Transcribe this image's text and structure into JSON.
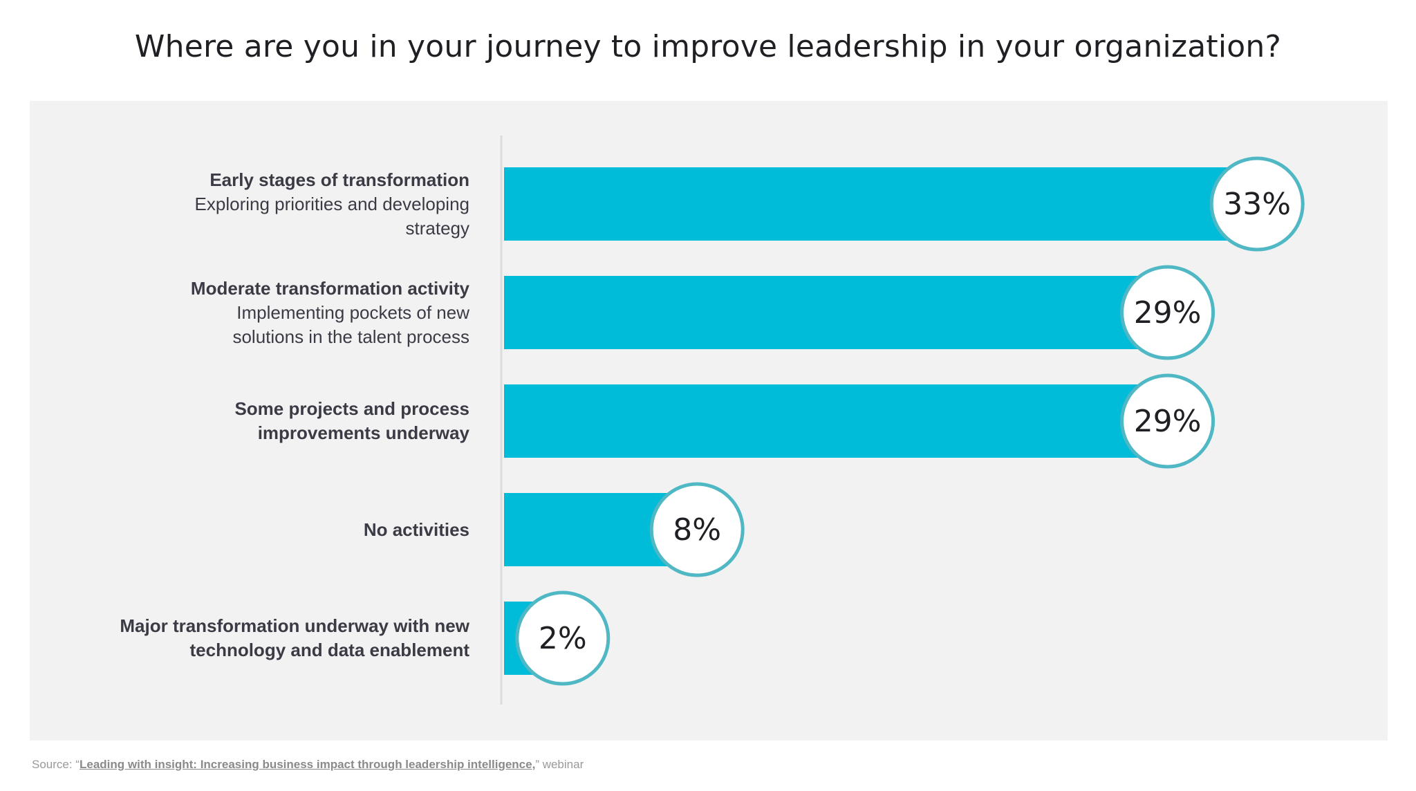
{
  "chart_data": {
    "type": "bar",
    "orientation": "horizontal",
    "title": "Where are you in your journey to improve leadership in your organization?",
    "categories": [
      {
        "title": "Early stages of transformation",
        "subtitle": "Exploring priorities and developing strategy"
      },
      {
        "title": "Moderate transformation activity",
        "subtitle": "Implementing pockets of new solutions in the talent process"
      },
      {
        "title": "Some projects and process improvements underway",
        "subtitle": ""
      },
      {
        "title": "No activities",
        "subtitle": ""
      },
      {
        "title": "Major transformation underway with new technology and data enablement",
        "subtitle": ""
      }
    ],
    "values": [
      33,
      29,
      29,
      8,
      2
    ],
    "data_labels": [
      "33%",
      "29%",
      "29%",
      "8%",
      "2%"
    ],
    "unit": "%",
    "grid": false,
    "legend": "none",
    "colors": {
      "bar": "#00bcd8",
      "circle_border": "#4fb8c4",
      "background": "#f2f2f2"
    }
  },
  "source": {
    "prefix": "Source: “",
    "link_text": "Leading with insight: Increasing business impact through leadership intelligence,",
    "suffix": "” webinar"
  }
}
